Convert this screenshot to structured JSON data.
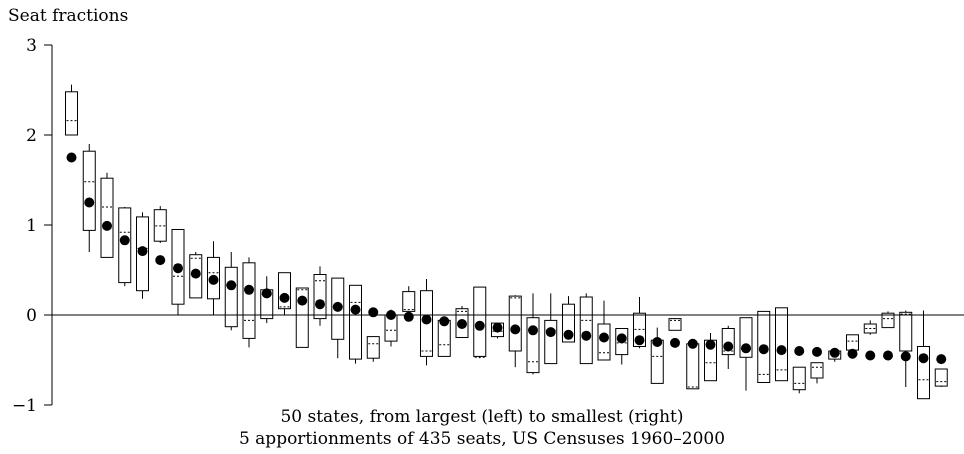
{
  "chart_data": {
    "type": "box",
    "ylabel": "Seat fractions",
    "xlabel_lines": [
      "50 states, from largest (left) to smallest (right)",
      "5 apportionments of 435 seats, US Censuses 1960–2000"
    ],
    "ylim": [
      -1,
      3
    ],
    "yticks": [
      -1,
      0,
      1,
      2,
      3
    ],
    "ytick_labels": [
      "−1",
      "0",
      "1",
      "2",
      "3"
    ],
    "zero_line": true,
    "legend": "none",
    "states": [
      {
        "box": [
          2.0,
          2.48
        ],
        "median": 2.16,
        "whisker": [
          2.0,
          2.56
        ],
        "point": 1.75
      },
      {
        "box": [
          0.94,
          1.82
        ],
        "median": 1.48,
        "whisker": [
          0.7,
          1.9
        ],
        "point": 1.25
      },
      {
        "box": [
          0.64,
          1.52
        ],
        "median": 1.2,
        "whisker": [
          0.64,
          1.58
        ],
        "point": 0.99
      },
      {
        "box": [
          0.36,
          1.19
        ],
        "median": 0.92,
        "whisker": [
          0.32,
          1.2
        ],
        "point": 0.83
      },
      {
        "box": [
          0.27,
          1.09
        ],
        "median": 0.74,
        "whisker": [
          0.18,
          1.14
        ],
        "point": 0.71
      },
      {
        "box": [
          0.82,
          1.17
        ],
        "median": 0.99,
        "whisker": [
          0.8,
          1.21
        ],
        "point": 0.61
      },
      {
        "box": [
          0.12,
          0.95
        ],
        "median": 0.43,
        "whisker": [
          0.0,
          0.95
        ],
        "point": 0.52
      },
      {
        "box": [
          0.19,
          0.67
        ],
        "median": 0.63,
        "whisker": [
          0.19,
          0.7
        ],
        "point": 0.46
      },
      {
        "box": [
          0.18,
          0.64
        ],
        "median": 0.47,
        "whisker": [
          0.0,
          0.82
        ],
        "point": 0.39
      },
      {
        "box": [
          -0.13,
          0.53
        ],
        "median": 0.33,
        "whisker": [
          -0.17,
          0.7
        ],
        "point": 0.33
      },
      {
        "box": [
          -0.26,
          0.58
        ],
        "median": -0.06,
        "whisker": [
          -0.36,
          0.64
        ],
        "point": 0.28
      },
      {
        "box": [
          -0.04,
          0.28
        ],
        "median": 0.23,
        "whisker": [
          -0.09,
          0.43
        ],
        "point": 0.24
      },
      {
        "box": [
          0.07,
          0.47
        ],
        "median": 0.09,
        "whisker": [
          0.0,
          0.47
        ],
        "point": 0.19
      },
      {
        "box": [
          -0.36,
          0.3
        ],
        "median": 0.28,
        "whisker": [
          -0.36,
          0.3
        ],
        "point": 0.16
      },
      {
        "box": [
          -0.04,
          0.45
        ],
        "median": 0.38,
        "whisker": [
          -0.12,
          0.54
        ],
        "point": 0.12
      },
      {
        "box": [
          -0.27,
          0.41
        ],
        "median": 0.09,
        "whisker": [
          -0.48,
          0.41
        ],
        "point": 0.09
      },
      {
        "box": [
          -0.49,
          0.33
        ],
        "median": 0.14,
        "whisker": [
          -0.54,
          0.33
        ],
        "point": 0.06
      },
      {
        "box": [
          -0.48,
          -0.24
        ],
        "median": -0.32,
        "whisker": [
          -0.52,
          -0.24
        ],
        "point": 0.03
      },
      {
        "box": [
          -0.29,
          0.0
        ],
        "median": -0.17,
        "whisker": [
          -0.35,
          0.06
        ],
        "point": 0.0
      },
      {
        "box": [
          0.04,
          0.26
        ],
        "median": 0.06,
        "whisker": [
          0.04,
          0.32
        ],
        "point": -0.02
      },
      {
        "box": [
          -0.46,
          0.27
        ],
        "median": -0.4,
        "whisker": [
          -0.56,
          0.4
        ],
        "point": -0.05
      },
      {
        "box": [
          -0.46,
          -0.06
        ],
        "median": -0.33,
        "whisker": [
          -0.46,
          -0.06
        ],
        "point": -0.07
      },
      {
        "box": [
          -0.25,
          0.07
        ],
        "median": 0.04,
        "whisker": [
          -0.25,
          0.1
        ],
        "point": -0.1
      },
      {
        "box": [
          -0.46,
          0.31
        ],
        "median": -0.47,
        "whisker": [
          -0.48,
          0.31
        ],
        "point": -0.12
      },
      {
        "box": [
          -0.24,
          -0.09
        ],
        "median": -0.18,
        "whisker": [
          -0.26,
          -0.09
        ],
        "point": -0.14
      },
      {
        "box": [
          -0.4,
          0.21
        ],
        "median": 0.19,
        "whisker": [
          -0.58,
          0.22
        ],
        "point": -0.16
      },
      {
        "box": [
          -0.64,
          -0.03
        ],
        "median": -0.52,
        "whisker": [
          -0.66,
          0.24
        ],
        "point": -0.17
      },
      {
        "box": [
          -0.54,
          -0.06
        ],
        "median": -0.17,
        "whisker": [
          -0.54,
          0.24
        ],
        "point": -0.19
      },
      {
        "box": [
          -0.3,
          0.12
        ],
        "median": -0.3,
        "whisker": [
          -0.3,
          0.21
        ],
        "point": -0.22
      },
      {
        "box": [
          -0.54,
          0.2
        ],
        "median": -0.06,
        "whisker": [
          -0.54,
          0.24
        ],
        "point": -0.23
      },
      {
        "box": [
          -0.5,
          -0.1
        ],
        "median": -0.42,
        "whisker": [
          -0.5,
          0.16
        ],
        "point": -0.25
      },
      {
        "box": [
          -0.44,
          -0.15
        ],
        "median": -0.31,
        "whisker": [
          -0.55,
          -0.15
        ],
        "point": -0.26
      },
      {
        "box": [
          -0.35,
          0.02
        ],
        "median": -0.16,
        "whisker": [
          -0.37,
          0.2
        ],
        "point": -0.28
      },
      {
        "box": [
          -0.76,
          -0.28
        ],
        "median": -0.46,
        "whisker": [
          -0.76,
          -0.14
        ],
        "point": -0.3
      },
      {
        "box": [
          -0.17,
          -0.04
        ],
        "median": -0.06,
        "whisker": [
          -0.17,
          -0.04
        ],
        "point": -0.31
      },
      {
        "box": [
          -0.82,
          -0.32
        ],
        "median": -0.8,
        "whisker": [
          -0.82,
          -0.32
        ],
        "point": -0.32
      },
      {
        "box": [
          -0.73,
          -0.28
        ],
        "median": -0.53,
        "whisker": [
          -0.73,
          -0.2
        ],
        "point": -0.33
      },
      {
        "box": [
          -0.44,
          -0.15
        ],
        "median": -0.4,
        "whisker": [
          -0.6,
          -0.12
        ],
        "point": -0.35
      },
      {
        "box": [
          -0.47,
          -0.03
        ],
        "median": -0.38,
        "whisker": [
          -0.84,
          -0.03
        ],
        "point": -0.37
      },
      {
        "box": [
          -0.75,
          0.04
        ],
        "median": -0.66,
        "whisker": [
          -0.75,
          0.04
        ],
        "point": -0.38
      },
      {
        "box": [
          -0.73,
          0.08
        ],
        "median": -0.61,
        "whisker": [
          -0.73,
          0.08
        ],
        "point": -0.39
      },
      {
        "box": [
          -0.83,
          -0.58
        ],
        "median": -0.76,
        "whisker": [
          -0.87,
          -0.58
        ],
        "point": -0.4
      },
      {
        "box": [
          -0.7,
          -0.53
        ],
        "median": -0.58,
        "whisker": [
          -0.76,
          -0.53
        ],
        "point": -0.41
      },
      {
        "box": [
          -0.49,
          -0.4
        ],
        "median": -0.43,
        "whisker": [
          -0.52,
          -0.4
        ],
        "point": -0.42
      },
      {
        "box": [
          -0.39,
          -0.22
        ],
        "median": -0.29,
        "whisker": [
          -0.44,
          -0.22
        ],
        "point": -0.43
      },
      {
        "box": [
          -0.2,
          -0.1
        ],
        "median": -0.15,
        "whisker": [
          -0.22,
          -0.06
        ],
        "point": -0.45
      },
      {
        "box": [
          -0.14,
          0.02
        ],
        "median": -0.04,
        "whisker": [
          -0.14,
          0.04
        ],
        "point": -0.45
      },
      {
        "box": [
          -0.4,
          0.03
        ],
        "median": 0.01,
        "whisker": [
          -0.8,
          0.05
        ],
        "point": -0.46
      },
      {
        "box": [
          -0.93,
          -0.35
        ],
        "median": -0.72,
        "whisker": [
          -0.93,
          0.05
        ],
        "point": -0.48
      },
      {
        "box": [
          -0.79,
          -0.6
        ],
        "median": -0.74,
        "whisker": [
          -0.8,
          -0.6
        ],
        "point": -0.49
      }
    ]
  }
}
